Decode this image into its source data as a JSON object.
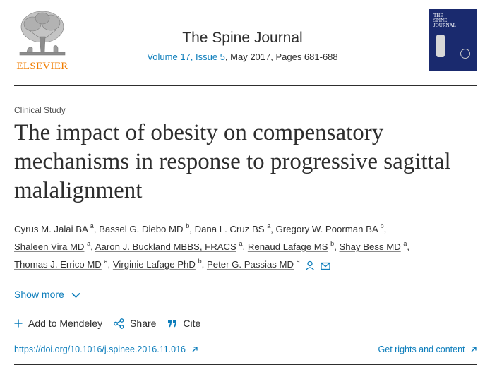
{
  "publisher": {
    "name": "ELSEVIER",
    "logo_icon": "elsevier-tree-logo",
    "color": "#f07c00"
  },
  "journal": {
    "title": "The Spine Journal",
    "volume_issue": "Volume 17, Issue 5",
    "date_pages": ", May 2017, Pages 681-688",
    "cover_text_line1": "THE",
    "cover_text_line2": "SPINE",
    "cover_text_line3": "JOURNAL",
    "cover_color": "#1a2a6e"
  },
  "article": {
    "type": "Clinical Study",
    "title": "The impact of obesity on compensatory mechanisms in response to progressive sagittal malalignment"
  },
  "authors": [
    {
      "name": "Cyrus M. Jalai BA",
      "sup": "a"
    },
    {
      "name": "Bassel G. Diebo MD",
      "sup": "b"
    },
    {
      "name": "Dana L. Cruz BS",
      "sup": "a"
    },
    {
      "name": "Gregory W. Poorman BA",
      "sup": "b"
    },
    {
      "name": "Shaleen Vira MD",
      "sup": "a"
    },
    {
      "name": "Aaron J. Buckland MBBS, FRACS",
      "sup": "a"
    },
    {
      "name": "Renaud Lafage MS",
      "sup": "b"
    },
    {
      "name": "Shay Bess MD",
      "sup": "a"
    },
    {
      "name": "Thomas J. Errico MD",
      "sup": "a"
    },
    {
      "name": "Virginie Lafage PhD",
      "sup": "b"
    },
    {
      "name": "Peter G. Passias MD",
      "sup": "a"
    }
  ],
  "author_icons": [
    "person-icon",
    "envelope-icon"
  ],
  "show_more": {
    "label": "Show more",
    "icon": "chevron-down-icon"
  },
  "actions": [
    {
      "label": "Add to Mendeley",
      "icon": "plus-icon"
    },
    {
      "label": "Share",
      "icon": "share-icon"
    },
    {
      "label": "Cite",
      "icon": "quote-icon"
    }
  ],
  "doi": "https://doi.org/10.1016/j.spinee.2016.11.016",
  "rights": "Get rights and content",
  "colors": {
    "link": "#0c7dbb",
    "text": "#2e2e2e"
  }
}
